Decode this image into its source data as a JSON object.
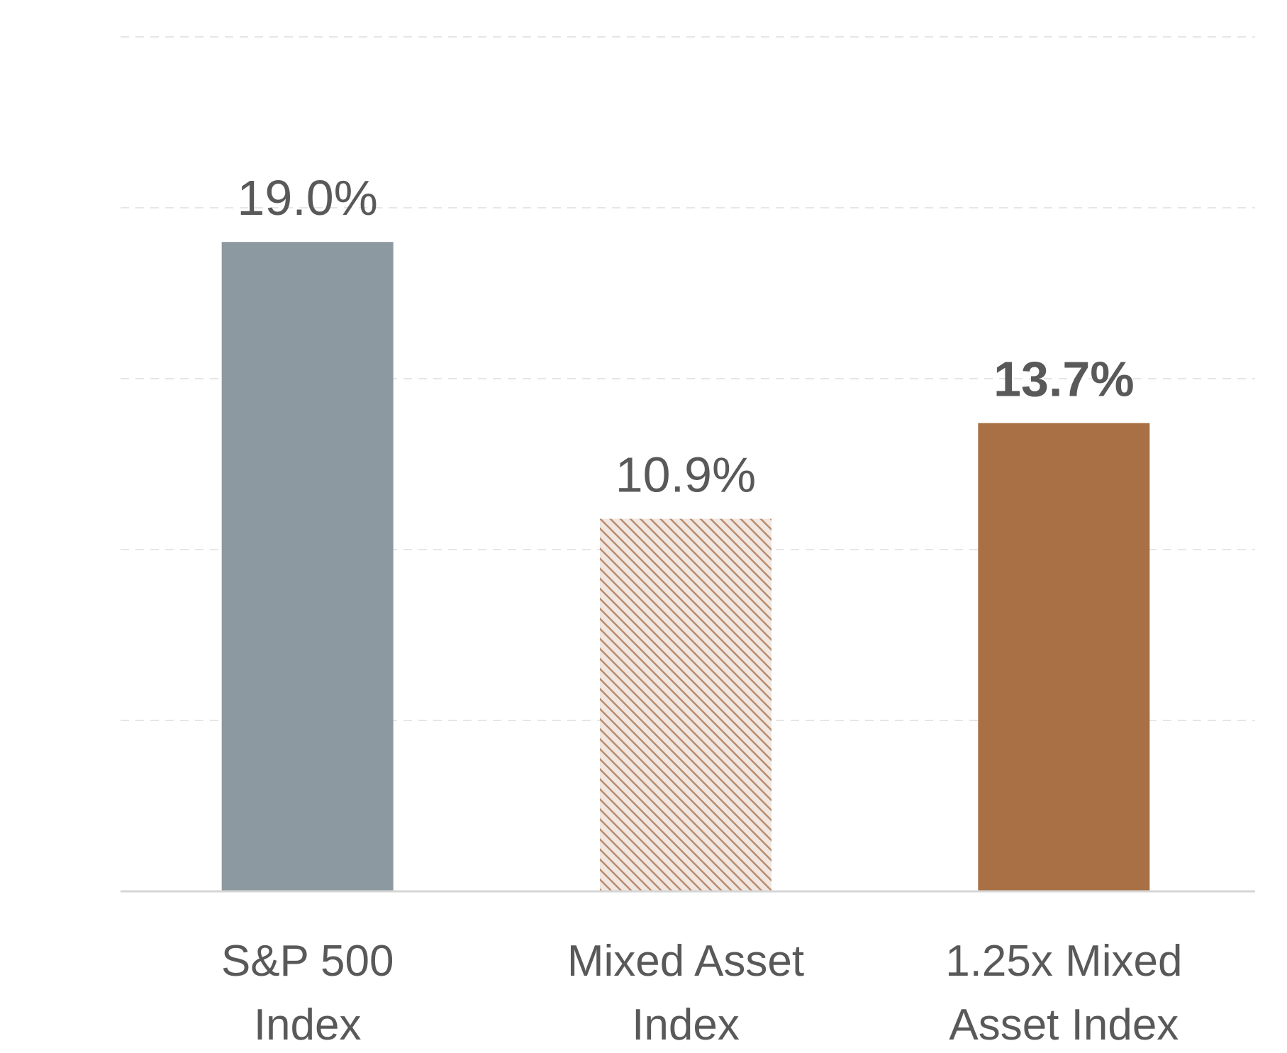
{
  "chart_data": {
    "type": "bar",
    "categories": [
      [
        "S&P 500",
        "Index"
      ],
      [
        "Mixed Asset",
        "Index"
      ],
      [
        "1.25x Mixed",
        "Asset Index"
      ]
    ],
    "values": [
      19.0,
      10.9,
      13.7
    ],
    "value_labels": [
      "19.0%",
      "10.9%",
      "13.7%"
    ],
    "bold_labels": [
      false,
      false,
      true
    ],
    "bar_styles": [
      "solid",
      "hatched",
      "solid"
    ],
    "colors": [
      "#8d99a1",
      "#b88c70",
      "#a87044"
    ],
    "ylim": [
      0,
      25
    ],
    "gridlines": [
      5,
      10,
      15,
      20,
      25
    ],
    "grid": true,
    "title": "",
    "xlabel": "",
    "ylabel": ""
  }
}
